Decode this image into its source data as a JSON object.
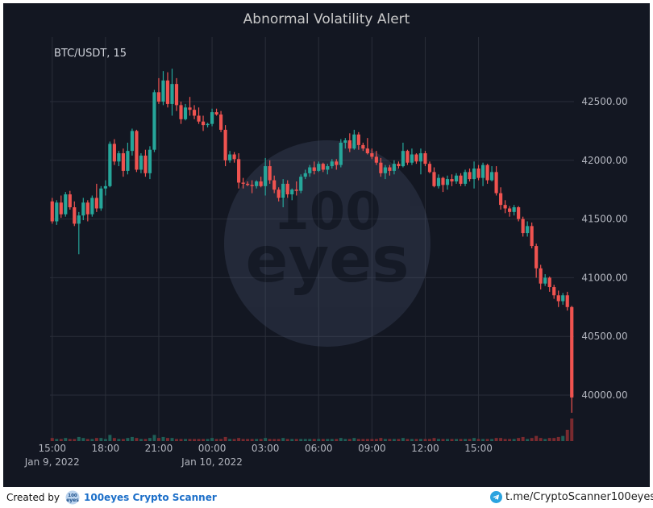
{
  "colors": {
    "background": "#131722",
    "grid": "#2a2e39",
    "up": "#26a69a",
    "down": "#ef5350",
    "text": "#b2b5be",
    "title": "#c8c8c8"
  },
  "footer": {
    "created_by": "Created by",
    "brand": "100eyes Crypto Scanner",
    "telegram": "t.me/CryptoScanner100eyes",
    "watermark_text": "100 eyes"
  },
  "chart_data": {
    "type": "candlestick",
    "title": "Abnormal Volatility Alert",
    "symbol_label": "BTC/USDT, 15",
    "interval_minutes": 15,
    "y_ticks": [
      40000,
      40500,
      41000,
      41500,
      42000,
      42500
    ],
    "y_tick_labels": [
      "40000.00",
      "40500.00",
      "41000.00",
      "41500.00",
      "42000.00",
      "42500.00"
    ],
    "ylim": [
      39600,
      42900
    ],
    "x_ticks": [
      {
        "label": "15:00",
        "index": 0.5,
        "date": "Jan 9, 2022"
      },
      {
        "label": "18:00",
        "index": 12.5,
        "date": ""
      },
      {
        "label": "21:00",
        "index": 24.5,
        "date": ""
      },
      {
        "label": "00:00",
        "index": 36.5,
        "date": "Jan 10, 2022"
      },
      {
        "label": "03:00",
        "index": 48.5,
        "date": ""
      },
      {
        "label": "06:00",
        "index": 60.5,
        "date": ""
      },
      {
        "label": "09:00",
        "index": 72.5,
        "date": ""
      },
      {
        "label": "12:00",
        "index": 84.5,
        "date": ""
      },
      {
        "label": "15:00",
        "index": 96.5,
        "date": ""
      }
    ],
    "candles": [
      [
        41650,
        41680,
        41460,
        41480
      ],
      [
        41480,
        41660,
        41450,
        41640
      ],
      [
        41640,
        41700,
        41510,
        41540
      ],
      [
        41540,
        41730,
        41520,
        41710
      ],
      [
        41710,
        41740,
        41580,
        41600
      ],
      [
        41600,
        41650,
        41440,
        41460
      ],
      [
        41460,
        41560,
        41200,
        41530
      ],
      [
        41530,
        41680,
        41490,
        41640
      ],
      [
        41640,
        41660,
        41480,
        41540
      ],
      [
        41540,
        41700,
        41520,
        41680
      ],
      [
        41680,
        41800,
        41560,
        41590
      ],
      [
        41590,
        41780,
        41570,
        41760
      ],
      [
        41760,
        41830,
        41700,
        41780
      ],
      [
        41780,
        42160,
        41770,
        42140
      ],
      [
        42140,
        42180,
        41960,
        41990
      ],
      [
        41990,
        42080,
        41950,
        42060
      ],
      [
        42060,
        42100,
        41860,
        41910
      ],
      [
        41910,
        42150,
        41880,
        42080
      ],
      [
        42080,
        42270,
        42040,
        42250
      ],
      [
        42250,
        42260,
        41900,
        41920
      ],
      [
        41920,
        42060,
        41890,
        42040
      ],
      [
        42040,
        42090,
        41860,
        41890
      ],
      [
        41890,
        42120,
        41840,
        42090
      ],
      [
        42090,
        42600,
        42070,
        42580
      ],
      [
        42580,
        42700,
        42480,
        42500
      ],
      [
        42500,
        42760,
        42470,
        42680
      ],
      [
        42680,
        42750,
        42450,
        42480
      ],
      [
        42480,
        42780,
        42380,
        42650
      ],
      [
        42650,
        42700,
        42420,
        42470
      ],
      [
        42470,
        42500,
        42310,
        42350
      ],
      [
        42350,
        42480,
        42340,
        42450
      ],
      [
        42450,
        42540,
        42380,
        42430
      ],
      [
        42430,
        42470,
        42350,
        42380
      ],
      [
        42380,
        42450,
        42310,
        42330
      ],
      [
        42330,
        42380,
        42250,
        42300
      ],
      [
        42300,
        42320,
        42280,
        42310
      ],
      [
        42310,
        42440,
        42290,
        42410
      ],
      [
        42410,
        42440,
        42380,
        42390
      ],
      [
        42390,
        42420,
        42240,
        42260
      ],
      [
        42260,
        42300,
        41950,
        42000
      ],
      [
        42000,
        42080,
        41980,
        42050
      ],
      [
        42050,
        42070,
        41980,
        42010
      ],
      [
        42010,
        42060,
        41760,
        41810
      ],
      [
        41810,
        41850,
        41760,
        41800
      ],
      [
        41800,
        41820,
        41780,
        41790
      ],
      [
        41790,
        41830,
        41720,
        41780
      ],
      [
        41780,
        41830,
        41760,
        41820
      ],
      [
        41820,
        41860,
        41770,
        41780
      ],
      [
        41780,
        42020,
        41700,
        41950
      ],
      [
        41950,
        42000,
        41800,
        41830
      ],
      [
        41830,
        41870,
        41720,
        41750
      ],
      [
        41750,
        41770,
        41650,
        41680
      ],
      [
        41680,
        41840,
        41600,
        41800
      ],
      [
        41800,
        41830,
        41680,
        41710
      ],
      [
        41710,
        41760,
        41660,
        41750
      ],
      [
        41750,
        41820,
        41700,
        41740
      ],
      [
        41740,
        41880,
        41720,
        41860
      ],
      [
        41860,
        41920,
        41840,
        41890
      ],
      [
        41890,
        41960,
        41860,
        41940
      ],
      [
        41940,
        41990,
        41880,
        41910
      ],
      [
        41910,
        41990,
        41900,
        41970
      ],
      [
        41970,
        41980,
        41900,
        41920
      ],
      [
        41920,
        41970,
        41880,
        41950
      ],
      [
        41950,
        42010,
        41930,
        41990
      ],
      [
        41990,
        42010,
        41920,
        41960
      ],
      [
        41960,
        42180,
        41940,
        42150
      ],
      [
        42150,
        42190,
        42100,
        42170
      ],
      [
        42170,
        42230,
        42070,
        42100
      ],
      [
        42100,
        42260,
        42090,
        42220
      ],
      [
        42220,
        42240,
        42090,
        42130
      ],
      [
        42130,
        42150,
        42080,
        42100
      ],
      [
        42100,
        42190,
        42050,
        42060
      ],
      [
        42060,
        42100,
        42010,
        42030
      ],
      [
        42030,
        42080,
        41960,
        41980
      ],
      [
        41980,
        42020,
        41860,
        41890
      ],
      [
        41890,
        41960,
        41840,
        41940
      ],
      [
        41940,
        41960,
        41870,
        41910
      ],
      [
        41910,
        42000,
        41880,
        41970
      ],
      [
        41970,
        41990,
        41930,
        41950
      ],
      [
        41950,
        42150,
        41940,
        42080
      ],
      [
        42080,
        42090,
        41960,
        41980
      ],
      [
        41980,
        42100,
        41960,
        42050
      ],
      [
        42050,
        42060,
        41970,
        41990
      ],
      [
        41990,
        42100,
        41880,
        42060
      ],
      [
        42060,
        42080,
        41950,
        41970
      ],
      [
        41970,
        41990,
        41890,
        41900
      ],
      [
        41900,
        41940,
        41770,
        41780
      ],
      [
        41780,
        41880,
        41760,
        41850
      ],
      [
        41850,
        41860,
        41730,
        41790
      ],
      [
        41790,
        41870,
        41750,
        41840
      ],
      [
        41840,
        41880,
        41780,
        41820
      ],
      [
        41820,
        41890,
        41800,
        41870
      ],
      [
        41870,
        41890,
        41780,
        41800
      ],
      [
        41800,
        41920,
        41780,
        41900
      ],
      [
        41900,
        41930,
        41820,
        41840
      ],
      [
        41840,
        41990,
        41760,
        41930
      ],
      [
        41930,
        41960,
        41830,
        41850
      ],
      [
        41850,
        41980,
        41780,
        41960
      ],
      [
        41960,
        41970,
        41800,
        41830
      ],
      [
        41830,
        41950,
        41820,
        41900
      ],
      [
        41900,
        41950,
        41700,
        41720
      ],
      [
        41720,
        41770,
        41580,
        41620
      ],
      [
        41620,
        41660,
        41550,
        41590
      ],
      [
        41590,
        41610,
        41520,
        41560
      ],
      [
        41560,
        41620,
        41530,
        41600
      ],
      [
        41600,
        41610,
        41480,
        41500
      ],
      [
        41500,
        41520,
        41350,
        41380
      ],
      [
        41380,
        41480,
        41350,
        41440
      ],
      [
        41440,
        41470,
        41250,
        41270
      ],
      [
        41270,
        41290,
        41000,
        41080
      ],
      [
        41080,
        41110,
        40900,
        40950
      ],
      [
        40950,
        41030,
        40930,
        41000
      ],
      [
        41000,
        41010,
        40880,
        40920
      ],
      [
        40920,
        40940,
        40820,
        40850
      ],
      [
        40850,
        40890,
        40750,
        40800
      ],
      [
        40800,
        40870,
        40770,
        40850
      ],
      [
        40850,
        40880,
        40720,
        40750
      ],
      [
        40750,
        40760,
        39850,
        39980
      ]
    ],
    "volumes": [
      3,
      2,
      2,
      3,
      2,
      2,
      4,
      3,
      2,
      2,
      3,
      3,
      2,
      6,
      3,
      2,
      2,
      3,
      4,
      3,
      2,
      2,
      3,
      6,
      3,
      4,
      3,
      3,
      2,
      2,
      2,
      2,
      2,
      2,
      2,
      2,
      3,
      2,
      2,
      4,
      2,
      2,
      3,
      2,
      2,
      2,
      2,
      2,
      3,
      2,
      2,
      2,
      3,
      2,
      2,
      2,
      2,
      2,
      2,
      2,
      2,
      2,
      2,
      2,
      2,
      3,
      2,
      2,
      3,
      2,
      2,
      2,
      2,
      2,
      3,
      2,
      2,
      2,
      2,
      3,
      2,
      2,
      2,
      2,
      2,
      2,
      3,
      2,
      2,
      2,
      2,
      2,
      2,
      2,
      2,
      3,
      2,
      2,
      2,
      2,
      3,
      3,
      2,
      2,
      2,
      3,
      4,
      2,
      3,
      5,
      3,
      2,
      3,
      3,
      4,
      5,
      11,
      22
    ]
  }
}
